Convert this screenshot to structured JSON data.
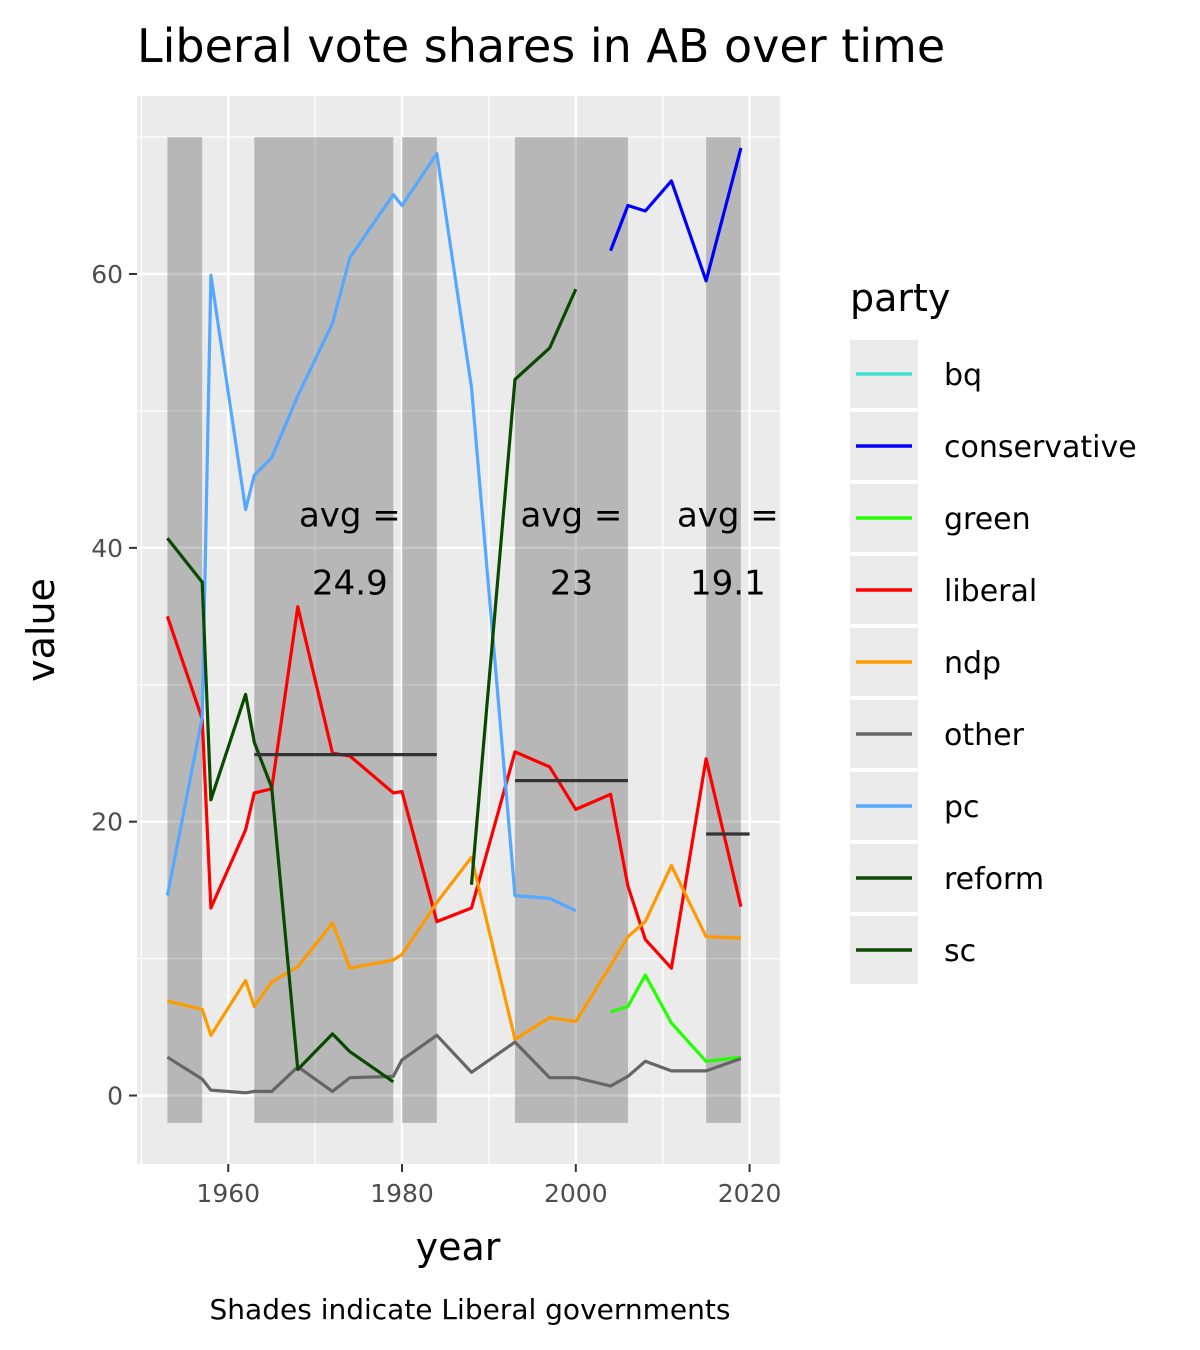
{
  "chart_data": {
    "type": "line",
    "title": "Liberal vote shares in AB over time",
    "xlabel": "year",
    "ylabel": "value",
    "caption": "Shades indicate Liberal governments",
    "xlim": [
      1949.5,
      2023.5
    ],
    "ylim": [
      -5,
      73
    ],
    "x_ticks": [
      1960,
      1980,
      2000,
      2020
    ],
    "y_ticks": [
      0,
      20,
      40,
      60
    ],
    "grid": true,
    "legend_position": "right",
    "legend_title": "party",
    "shaded_periods": [
      {
        "start": 1953,
        "end": 1957
      },
      {
        "start": 1963,
        "end": 1979
      },
      {
        "start": 1980,
        "end": 1984
      },
      {
        "start": 1993,
        "end": 2006
      },
      {
        "start": 2015,
        "end": 2019
      }
    ],
    "shade_y_range": [
      -2,
      70
    ],
    "averages": [
      {
        "start": 1963,
        "end": 1984,
        "value": 24.9,
        "label_line1": "avg =",
        "label_line2": "24.9",
        "label_x": 1974,
        "label_y": 42
      },
      {
        "start": 1993,
        "end": 2006,
        "value": 23,
        "label_line1": "avg =",
        "label_line2": "23",
        "label_x": 1999.5,
        "label_y": 42
      },
      {
        "start": 2015,
        "end": 2020,
        "value": 19.1,
        "label_line1": "avg =",
        "label_line2": "19.1",
        "label_x": 2017.5,
        "label_y": 42
      }
    ],
    "series": [
      {
        "name": "bq",
        "color": "#40E0D0",
        "points": []
      },
      {
        "name": "conservative",
        "color": "#0000FF",
        "points": [
          [
            2004,
            61.7
          ],
          [
            2006,
            65.0
          ],
          [
            2008,
            64.6
          ],
          [
            2011,
            66.8
          ],
          [
            2015,
            59.5
          ],
          [
            2019,
            69.2
          ]
        ]
      },
      {
        "name": "green",
        "color": "#22FF00",
        "points": [
          [
            2004,
            6.1
          ],
          [
            2006,
            6.5
          ],
          [
            2008,
            8.8
          ],
          [
            2011,
            5.3
          ],
          [
            2015,
            2.5
          ],
          [
            2019,
            2.8
          ]
        ]
      },
      {
        "name": "liberal",
        "color": "#FF0000",
        "points": [
          [
            1953,
            35.0
          ],
          [
            1957,
            27.5
          ],
          [
            1958,
            13.7
          ],
          [
            1962,
            19.4
          ],
          [
            1963,
            22.1
          ],
          [
            1965,
            22.4
          ],
          [
            1968,
            35.7
          ],
          [
            1972,
            25.0
          ],
          [
            1974,
            24.8
          ],
          [
            1979,
            22.1
          ],
          [
            1980,
            22.2
          ],
          [
            1984,
            12.7
          ],
          [
            1988,
            13.7
          ],
          [
            1993,
            25.1
          ],
          [
            1997,
            24.0
          ],
          [
            2000,
            20.9
          ],
          [
            2004,
            22.0
          ],
          [
            2006,
            15.3
          ],
          [
            2008,
            11.4
          ],
          [
            2011,
            9.3
          ],
          [
            2015,
            24.6
          ],
          [
            2019,
            13.8
          ]
        ]
      },
      {
        "name": "ndp",
        "color": "#FF9900",
        "points": [
          [
            1953,
            6.9
          ],
          [
            1957,
            6.3
          ],
          [
            1958,
            4.4
          ],
          [
            1962,
            8.4
          ],
          [
            1963,
            6.5
          ],
          [
            1965,
            8.3
          ],
          [
            1968,
            9.4
          ],
          [
            1972,
            12.6
          ],
          [
            1974,
            9.3
          ],
          [
            1979,
            9.9
          ],
          [
            1980,
            10.3
          ],
          [
            1984,
            14.1
          ],
          [
            1988,
            17.4
          ],
          [
            1993,
            4.1
          ],
          [
            1997,
            5.7
          ],
          [
            2000,
            5.4
          ],
          [
            2004,
            9.5
          ],
          [
            2006,
            11.6
          ],
          [
            2008,
            12.7
          ],
          [
            2011,
            16.8
          ],
          [
            2015,
            11.6
          ],
          [
            2019,
            11.5
          ]
        ]
      },
      {
        "name": "other",
        "color": "#666666",
        "points": [
          [
            1953,
            2.8
          ],
          [
            1957,
            1.2
          ],
          [
            1958,
            0.4
          ],
          [
            1962,
            0.2
          ],
          [
            1963,
            0.3
          ],
          [
            1965,
            0.3
          ],
          [
            1968,
            2.1
          ],
          [
            1972,
            0.3
          ],
          [
            1974,
            1.3
          ],
          [
            1979,
            1.4
          ],
          [
            1980,
            2.6
          ],
          [
            1984,
            4.4
          ],
          [
            1988,
            1.7
          ],
          [
            1993,
            3.9
          ],
          [
            1997,
            1.3
          ],
          [
            2000,
            1.3
          ],
          [
            2004,
            0.7
          ],
          [
            2006,
            1.4
          ],
          [
            2008,
            2.5
          ],
          [
            2011,
            1.8
          ],
          [
            2015,
            1.8
          ],
          [
            2019,
            2.7
          ]
        ]
      },
      {
        "name": "pc",
        "color": "#55A8FF",
        "points": [
          [
            1953,
            14.6
          ],
          [
            1957,
            27.6
          ],
          [
            1958,
            59.9
          ],
          [
            1962,
            42.8
          ],
          [
            1963,
            45.3
          ],
          [
            1965,
            46.6
          ],
          [
            1968,
            51.1
          ],
          [
            1972,
            56.4
          ],
          [
            1974,
            61.2
          ],
          [
            1979,
            65.8
          ],
          [
            1980,
            65.0
          ],
          [
            1984,
            68.8
          ],
          [
            1988,
            51.7
          ],
          [
            1993,
            14.6
          ],
          [
            1997,
            14.4
          ],
          [
            2000,
            13.5
          ]
        ]
      },
      {
        "name": "reform",
        "color": "#0A4A00",
        "points": [
          [
            1988,
            15.4
          ],
          [
            1993,
            52.3
          ],
          [
            1997,
            54.6
          ],
          [
            2000,
            58.9
          ]
        ]
      },
      {
        "name": "sc",
        "color": "#0A4A00",
        "points": [
          [
            1953,
            40.7
          ],
          [
            1957,
            37.5
          ],
          [
            1958,
            21.6
          ],
          [
            1962,
            29.3
          ],
          [
            1963,
            25.8
          ],
          [
            1965,
            22.5
          ],
          [
            1968,
            1.9
          ],
          [
            1972,
            4.5
          ],
          [
            1974,
            3.2
          ],
          [
            1979,
            1.0
          ]
        ]
      }
    ]
  }
}
